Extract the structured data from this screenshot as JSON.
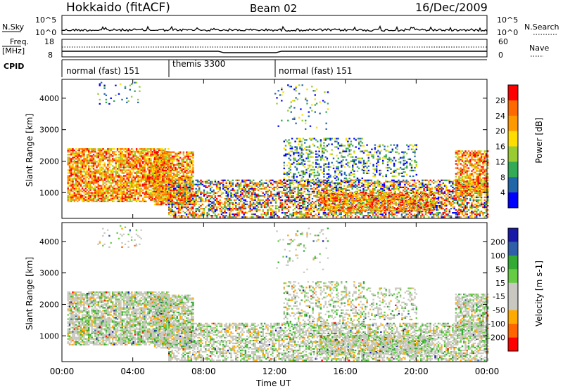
{
  "header": {
    "station": "Hokkaido (fitACF)",
    "beam": "Beam 02",
    "date": "16/Dec/2009"
  },
  "noise_panel": {
    "left_label": "N.Sky",
    "right_label": "N.Search",
    "left_ticks": [
      "10^5",
      "10^0"
    ],
    "right_ticks": [
      "10^5",
      "10^0"
    ]
  },
  "freq_panel": {
    "left_label_1": "Freq.",
    "left_label_2": "[MHz]",
    "right_label": "Nave",
    "left_ticks": [
      "18",
      "8"
    ],
    "right_ticks": [
      "60",
      "0"
    ]
  },
  "cpid_panel": {
    "label": "CPID",
    "segments": [
      {
        "name": "normal (fast) 151",
        "start": "00:00",
        "end": "06:00"
      },
      {
        "name": "themis 3300",
        "start": "06:00",
        "end": "12:00"
      },
      {
        "name": "normal (fast) 151",
        "start": "12:00",
        "end": "24:00"
      }
    ]
  },
  "chart_data": [
    {
      "type": "heatmap",
      "title": "Power",
      "ylabel": "Slant Range [km]",
      "ylim": [
        180,
        4600
      ],
      "x_ticks": [
        "00:00",
        "04:00",
        "08:00",
        "12:00",
        "16:00",
        "20:00",
        "00:00"
      ],
      "y_ticks": [
        "1000",
        "2000",
        "3000",
        "4000"
      ],
      "colorbar": {
        "label": "Power [dB]",
        "ticks": [
          "28",
          "24",
          "20",
          "16",
          "12",
          "8",
          "4"
        ],
        "colors": [
          "#ff0000",
          "#ff6a00",
          "#ff9900",
          "#ffdd00",
          "#99cc33",
          "#33aa55",
          "#2266aa",
          "#0000ff"
        ]
      }
    },
    {
      "type": "heatmap",
      "title": "Velocity",
      "ylabel": "Slant Range [km]",
      "xlabel": "Time UT",
      "ylim": [
        180,
        4600
      ],
      "x_ticks": [
        "00:00",
        "04:00",
        "08:00",
        "12:00",
        "16:00",
        "20:00",
        "00:00"
      ],
      "y_ticks": [
        "1000",
        "2000",
        "3000",
        "4000"
      ],
      "colorbar": {
        "label": "Velocity [m s-1]",
        "ticks": [
          "200",
          "100",
          "50",
          "15",
          "-15",
          "-50",
          "-100",
          "-200"
        ],
        "colors": [
          "#1a1aa8",
          "#2f5fa8",
          "#33aa33",
          "#66cc44",
          "#c8c8c0",
          "#c8c8c0",
          "#ffaa00",
          "#ff6600",
          "#ff0000"
        ]
      }
    }
  ],
  "colors": {
    "ground_scatter": "#c8c8c0",
    "axis": "#000000"
  }
}
